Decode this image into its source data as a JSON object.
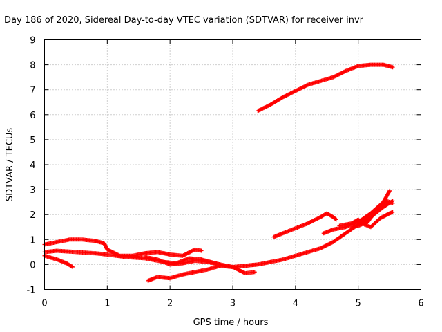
{
  "chart_data": {
    "type": "scatter",
    "title": "Day 186 of 2020, Sidereal Day-to-day VTEC variation (SDTVAR) for receiver invr",
    "xlabel": "GPS time / hours",
    "ylabel": "SDTVAR / TECUs",
    "xlim": [
      0,
      6
    ],
    "ylim": [
      -1,
      9
    ],
    "x_ticks": [
      "0",
      "1",
      "2",
      "3",
      "4",
      "5",
      "6"
    ],
    "y_ticks": [
      "-1",
      "0",
      "1",
      "2",
      "3",
      "4",
      "5",
      "6",
      "7",
      "8",
      "9"
    ],
    "grid": true,
    "legend": "none",
    "marker": "plus",
    "color": "#ff0000",
    "series": [
      {
        "points": [
          [
            3.4,
            6.15
          ],
          [
            3.6,
            6.4
          ],
          [
            3.8,
            6.7
          ],
          [
            4.0,
            6.95
          ],
          [
            4.2,
            7.2
          ],
          [
            4.4,
            7.35
          ],
          [
            4.6,
            7.5
          ],
          [
            4.8,
            7.75
          ],
          [
            5.0,
            7.95
          ],
          [
            5.2,
            8.0
          ],
          [
            5.4,
            8.0
          ],
          [
            5.55,
            7.9
          ]
        ]
      },
      {
        "points": [
          [
            0.0,
            0.8
          ],
          [
            0.2,
            0.9
          ],
          [
            0.4,
            1.0
          ],
          [
            0.6,
            1.0
          ],
          [
            0.8,
            0.95
          ],
          [
            0.95,
            0.85
          ],
          [
            1.0,
            0.6
          ],
          [
            1.2,
            0.35
          ],
          [
            1.4,
            0.35
          ],
          [
            1.6,
            0.45
          ],
          [
            1.8,
            0.5
          ],
          [
            2.0,
            0.4
          ],
          [
            2.2,
            0.35
          ],
          [
            2.4,
            0.6
          ],
          [
            2.5,
            0.55
          ]
        ]
      },
      {
        "points": [
          [
            0.0,
            0.5
          ],
          [
            0.2,
            0.55
          ],
          [
            0.5,
            0.5
          ],
          [
            0.8,
            0.45
          ],
          [
            1.0,
            0.4
          ],
          [
            1.3,
            0.3
          ],
          [
            1.6,
            0.25
          ],
          [
            1.9,
            0.1
          ],
          [
            2.1,
            0.05
          ],
          [
            2.3,
            0.25
          ],
          [
            2.5,
            0.2
          ],
          [
            2.8,
            0.0
          ],
          [
            3.0,
            -0.1
          ],
          [
            3.2,
            -0.35
          ],
          [
            3.35,
            -0.3
          ]
        ]
      },
      {
        "points": [
          [
            0.0,
            0.35
          ],
          [
            0.2,
            0.2
          ],
          [
            0.35,
            0.05
          ],
          [
            0.45,
            -0.1
          ]
        ]
      },
      {
        "points": [
          [
            1.65,
            -0.65
          ],
          [
            1.8,
            -0.5
          ],
          [
            2.0,
            -0.55
          ],
          [
            2.2,
            -0.4
          ],
          [
            2.4,
            -0.3
          ],
          [
            2.6,
            -0.2
          ],
          [
            2.8,
            -0.05
          ],
          [
            3.0,
            -0.1
          ],
          [
            3.2,
            -0.05
          ],
          [
            3.4,
            0.0
          ],
          [
            3.6,
            0.1
          ],
          [
            3.8,
            0.2
          ],
          [
            4.0,
            0.35
          ],
          [
            4.2,
            0.5
          ],
          [
            4.4,
            0.65
          ],
          [
            4.6,
            0.9
          ],
          [
            4.8,
            1.25
          ],
          [
            5.0,
            1.6
          ],
          [
            5.2,
            1.9
          ],
          [
            5.4,
            2.3
          ],
          [
            5.55,
            2.55
          ]
        ]
      },
      {
        "points": [
          [
            1.6,
            0.3
          ],
          [
            1.8,
            0.2
          ],
          [
            2.0,
            0.0
          ],
          [
            2.2,
            0.05
          ],
          [
            2.4,
            0.15
          ],
          [
            2.6,
            0.1
          ],
          [
            2.8,
            0.0
          ]
        ]
      },
      {
        "points": [
          [
            3.65,
            1.1
          ],
          [
            3.8,
            1.25
          ],
          [
            4.0,
            1.45
          ],
          [
            4.2,
            1.65
          ],
          [
            4.4,
            1.9
          ],
          [
            4.5,
            2.05
          ],
          [
            4.6,
            1.9
          ],
          [
            4.65,
            1.8
          ]
        ]
      },
      {
        "points": [
          [
            4.45,
            1.25
          ],
          [
            4.6,
            1.4
          ],
          [
            4.8,
            1.5
          ],
          [
            5.0,
            1.7
          ],
          [
            5.2,
            2.05
          ],
          [
            5.4,
            2.5
          ],
          [
            5.5,
            2.95
          ]
        ]
      },
      {
        "points": [
          [
            4.7,
            1.55
          ],
          [
            4.9,
            1.65
          ],
          [
            5.0,
            1.8
          ],
          [
            5.1,
            1.6
          ],
          [
            5.2,
            1.5
          ],
          [
            5.35,
            1.85
          ],
          [
            5.5,
            2.05
          ],
          [
            5.55,
            2.1
          ]
        ]
      },
      {
        "points": [
          [
            4.9,
            1.5
          ],
          [
            5.0,
            1.55
          ],
          [
            5.15,
            1.7
          ],
          [
            5.3,
            2.2
          ],
          [
            5.45,
            2.55
          ],
          [
            5.55,
            2.45
          ]
        ]
      }
    ]
  }
}
